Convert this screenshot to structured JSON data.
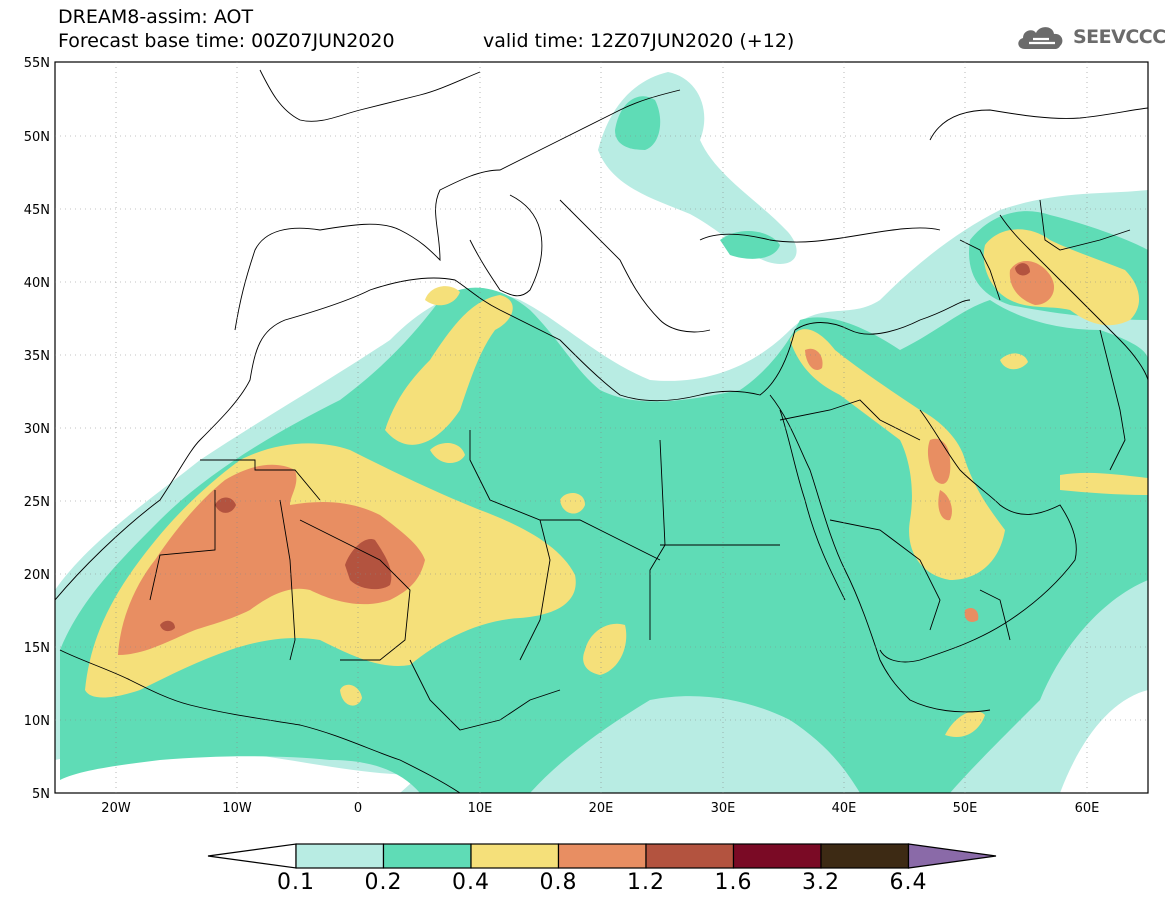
{
  "header": {
    "title_line1": "DREAM8-assim: AOT",
    "title_base": "Forecast base time: 00Z07JUN2020",
    "title_valid": "valid time: 12Z07JUN2020 (+12)"
  },
  "logo": {
    "icon": "cloud-icon",
    "text": "SEEVCCC"
  },
  "map": {
    "lat_labels": [
      "55N",
      "50N",
      "45N",
      "40N",
      "35N",
      "30N",
      "25N",
      "20N",
      "15N",
      "10N",
      "5N"
    ],
    "lon_labels": [
      "20W",
      "10W",
      "0",
      "10E",
      "20E",
      "30E",
      "40E",
      "50E",
      "60E"
    ],
    "extent": {
      "lon_min": -25,
      "lon_max": 65,
      "lat_min": 5,
      "lat_max": 55
    }
  },
  "colorbar": {
    "colors": [
      "#ffffff",
      "#b8ece3",
      "#5fdcb6",
      "#f5e07a",
      "#e88e62",
      "#b3533f",
      "#7a0a25",
      "#3d2a14",
      "#8a6aa8"
    ],
    "labels": [
      "0.1",
      "0.2",
      "0.4",
      "0.8",
      "1.2",
      "1.6",
      "3.2",
      "6.4"
    ]
  }
}
